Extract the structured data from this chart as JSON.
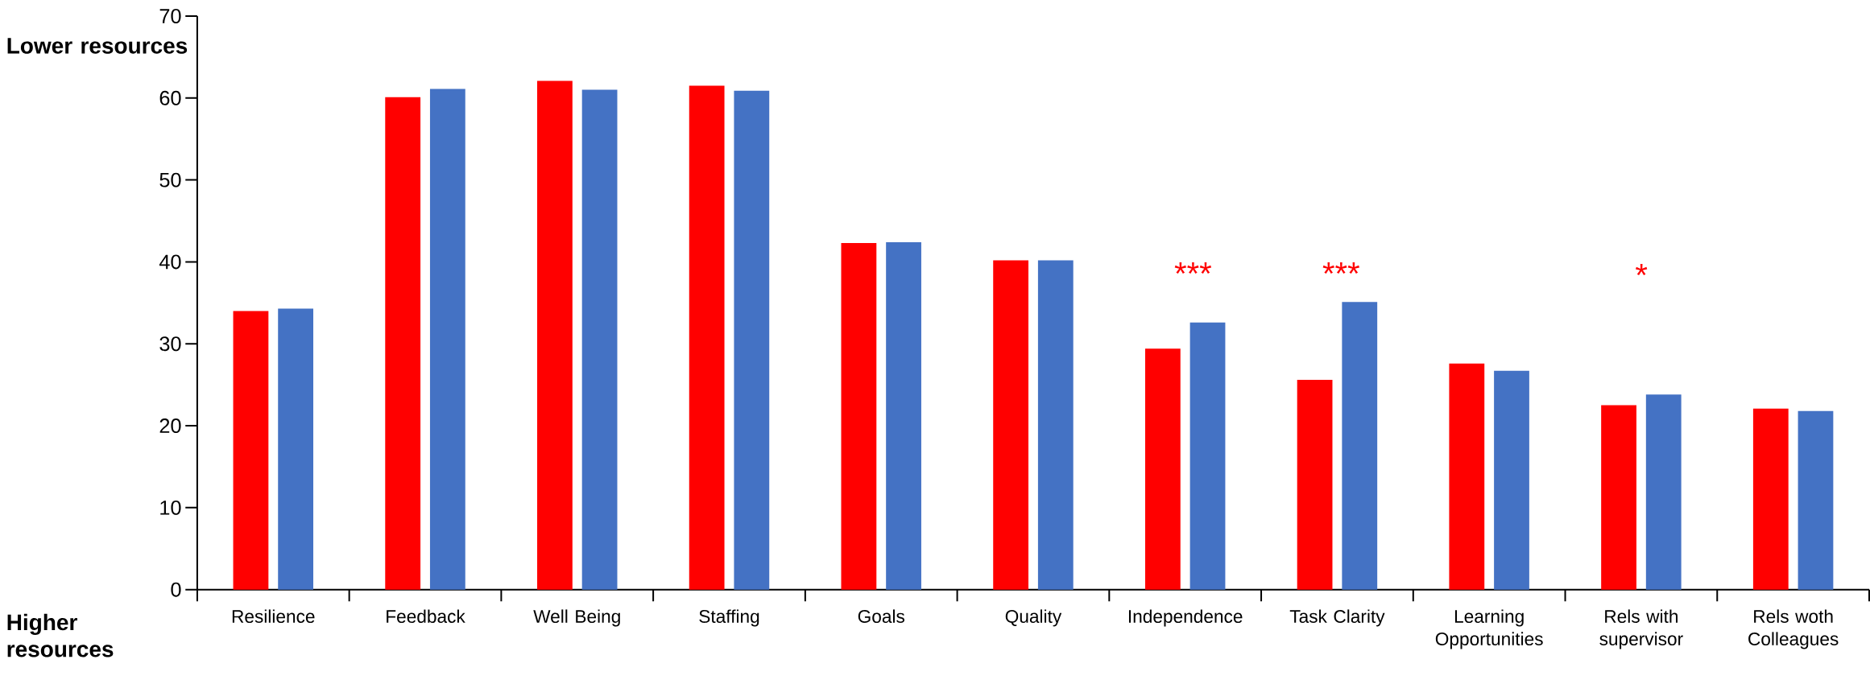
{
  "chart_data": {
    "type": "bar",
    "categories": [
      "Resilience",
      "Feedback",
      "Well Being",
      "Staffing",
      "Goals",
      "Quality",
      "Independence",
      "Task Clarity",
      "Learning Opportunities",
      "Rels with supervisor",
      "Rels woth Colleagues"
    ],
    "series": [
      {
        "color": "#ff0000",
        "values": [
          34.0,
          60.1,
          62.1,
          61.5,
          42.3,
          40.2,
          29.4,
          25.6,
          27.6,
          22.5,
          22.1
        ]
      },
      {
        "color": "#4472c4",
        "values": [
          34.3,
          61.1,
          61.0,
          60.9,
          42.4,
          40.2,
          32.6,
          35.1,
          26.7,
          23.8,
          21.8
        ]
      }
    ],
    "ylim": [
      0,
      70
    ],
    "yticks": [
      0,
      10,
      20,
      30,
      40,
      50,
      60,
      70
    ],
    "annotations": [
      "Lower resources",
      "Higher resources",
      "***",
      "***",
      "*"
    ]
  }
}
